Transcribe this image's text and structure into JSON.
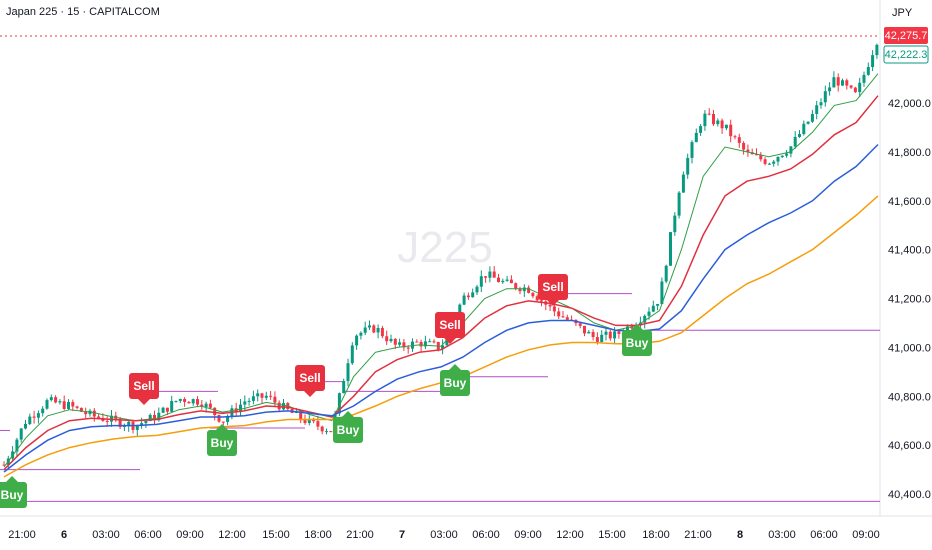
{
  "header": {
    "title": "Japan 225 · 15 · CAPITALCOM"
  },
  "currency": "JPY",
  "watermark": "J225",
  "price_axis": {
    "ticks": [
      "42,000.0",
      "41,800.0",
      "41,600.0",
      "41,400.0",
      "41,200.0",
      "41,000.0",
      "40,800.0",
      "40,600.0",
      "40,400.0"
    ],
    "last_price": "42,275.7",
    "ema_price": "42,222.3"
  },
  "time_axis": {
    "ticks": [
      "21:00",
      "6",
      "03:00",
      "06:00",
      "09:00",
      "12:00",
      "15:00",
      "18:00",
      "21:00",
      "7",
      "03:00",
      "06:00",
      "09:00",
      "12:00",
      "15:00",
      "18:00",
      "21:00",
      "8",
      "03:00",
      "06:00",
      "09:00"
    ]
  },
  "signals": [
    {
      "label": "Buy",
      "kind": "buy"
    },
    {
      "label": "Sell",
      "kind": "sell"
    },
    {
      "label": "Buy",
      "kind": "buy"
    },
    {
      "label": "Sell",
      "kind": "sell"
    },
    {
      "label": "Buy",
      "kind": "buy"
    },
    {
      "label": "Sell",
      "kind": "sell"
    },
    {
      "label": "Buy",
      "kind": "buy"
    },
    {
      "label": "Sell",
      "kind": "sell"
    },
    {
      "label": "Buy",
      "kind": "buy"
    }
  ],
  "colors": {
    "up": "#089981",
    "down": "#f23645",
    "ema_fast": "#2f9e44",
    "ema_mid": "#e03140",
    "ema_slow": "#2b5fd9",
    "ema_long": "#f59e0b",
    "level": "#b24fc9",
    "buy": "#3fae49",
    "sell": "#e8313e"
  },
  "chart_data": {
    "type": "line",
    "title": "Japan 225 · 15 · CAPITALCOM",
    "ylim": [
      40340,
      42340
    ],
    "series": [
      {
        "values": [
          40520,
          40700,
          40780,
          40760,
          40720,
          40700,
          40680,
          40720,
          40790,
          40780,
          40700,
          40780,
          40800,
          40740,
          40690,
          40660,
          41050,
          41080,
          41000,
          41020,
          41000,
          41200,
          41300,
          41260,
          41240,
          41160,
          41100,
          41040,
          41050,
          41110,
          41200,
          41700,
          41950,
          41900,
          41790,
          41760,
          41820,
          41950,
          42100,
          42030,
          42270
        ]
      },
      {
        "values": [
          40510,
          40630,
          40720,
          40745,
          40735,
          40715,
          40700,
          40710,
          40745,
          40760,
          40735,
          40750,
          40775,
          40760,
          40725,
          40700,
          40880,
          40980,
          41000,
          41010,
          41005,
          41100,
          41200,
          41240,
          41240,
          41200,
          41160,
          41100,
          41070,
          41090,
          41150,
          41400,
          41700,
          41820,
          41800,
          41780,
          41800,
          41880,
          41990,
          42010,
          42120
        ]
      },
      {
        "values": [
          40500,
          40590,
          40660,
          40700,
          40710,
          40705,
          40700,
          40705,
          40725,
          40740,
          40730,
          40740,
          40760,
          40755,
          40735,
          40715,
          40800,
          40900,
          40950,
          40980,
          40990,
          41040,
          41120,
          41170,
          41190,
          41180,
          41160,
          41120,
          41090,
          41090,
          41110,
          41250,
          41460,
          41620,
          41680,
          41700,
          41730,
          41790,
          41870,
          41920,
          42030
        ]
      },
      {
        "values": [
          40490,
          40560,
          40620,
          40660,
          40675,
          40680,
          40680,
          40685,
          40700,
          40715,
          40715,
          40720,
          40735,
          40740,
          40730,
          40720,
          40760,
          40820,
          40870,
          40900,
          40920,
          40960,
          41020,
          41070,
          41100,
          41110,
          41110,
          41090,
          41070,
          41065,
          41075,
          41150,
          41280,
          41400,
          41460,
          41510,
          41550,
          41600,
          41680,
          41740,
          41830
        ]
      },
      {
        "values": [
          40470,
          40520,
          40560,
          40590,
          40610,
          40625,
          40635,
          40640,
          40655,
          40670,
          40675,
          40680,
          40695,
          40705,
          40705,
          40705,
          40725,
          40760,
          40800,
          40830,
          40855,
          40880,
          40920,
          40960,
          40990,
          41010,
          41020,
          41020,
          41015,
          41015,
          41025,
          41060,
          41130,
          41200,
          41260,
          41300,
          41350,
          41400,
          41470,
          41540,
          41620
        ]
      }
    ]
  }
}
